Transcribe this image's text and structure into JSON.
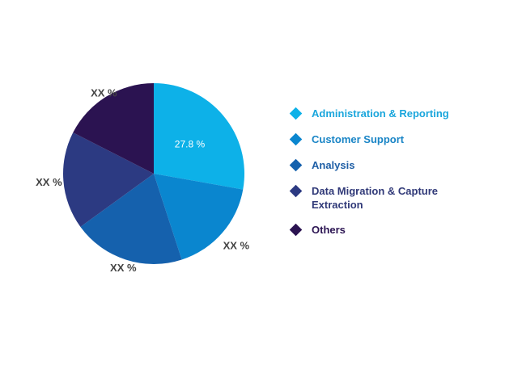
{
  "chart_data": {
    "type": "pie",
    "categories": [
      "Administration & Reporting",
      "Customer Support",
      "Analysis",
      "Data Migration & Capture Extraction",
      "Others"
    ],
    "values": [
      27.8,
      17.2,
      20.0,
      17.5,
      17.5
    ],
    "data_labels": [
      "27.8 %",
      "XX %",
      "XX %",
      "XX %",
      "XX %"
    ],
    "colors": [
      "#0db1e8",
      "#0a86cf",
      "#1561ad",
      "#2c3a82",
      "#2b1351"
    ],
    "legend_text_colors": [
      "#1aa6dc",
      "#1a85c6",
      "#1f5fa6",
      "#303978",
      "#2b1452"
    ],
    "label_colors": [
      "#ffffff",
      "#444444",
      "#444444",
      "#444444",
      "#444444"
    ],
    "start_at": "12 o'clock",
    "direction": "clockwise",
    "legend_position": "right"
  }
}
